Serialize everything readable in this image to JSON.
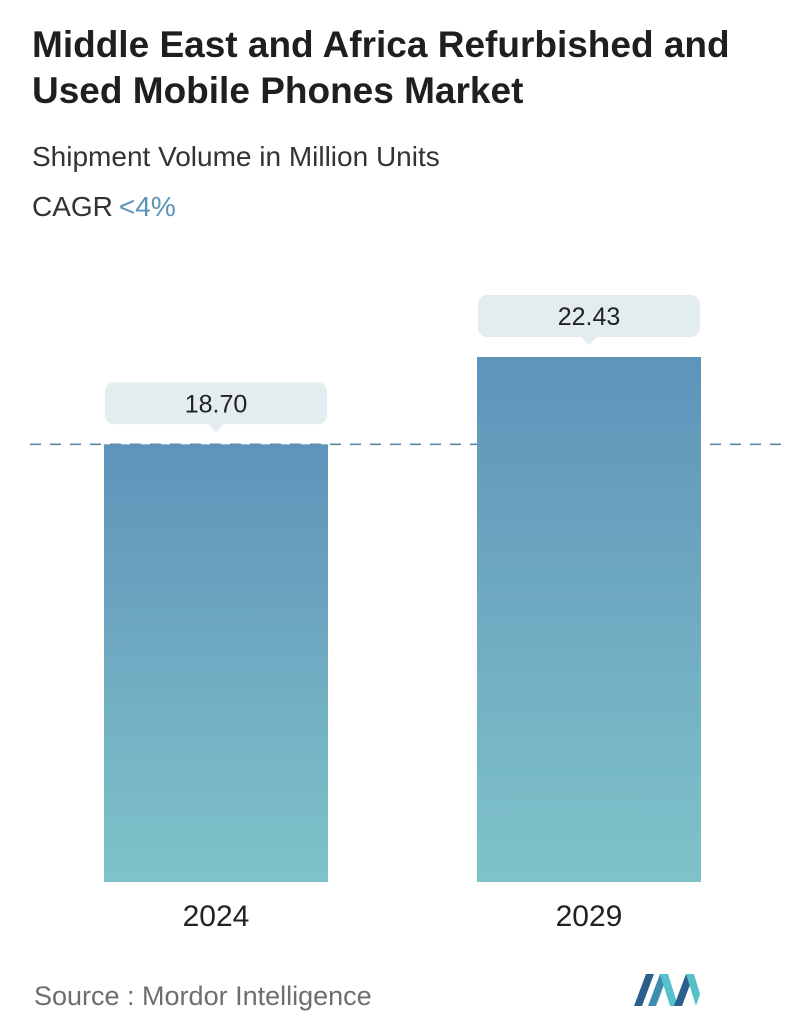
{
  "header": {
    "title": "Middle East and Africa Refurbished and Used Mobile Phones Market",
    "subtitle": "Shipment Volume in Million Units",
    "cagr_label": "CAGR",
    "cagr_value": "<4%"
  },
  "footer": {
    "source": "Source :  Mordor Intelligence",
    "logo_icon": "mordor-intelligence-logo-icon"
  },
  "colors": {
    "bar_top": "#5f93ba",
    "bar_bottom": "#7fc3c9",
    "label_bg": "#e3ecef",
    "dashed_line": "#5a8aa6",
    "cagr_accent": "#5b93b8"
  },
  "chart_data": {
    "type": "bar",
    "categories": [
      "2024",
      "2029"
    ],
    "values": [
      18.7,
      22.43
    ],
    "value_labels": [
      "18.70",
      "22.43"
    ],
    "title": "Middle East and Africa Refurbished and Used Mobile Phones Market",
    "subtitle": "Shipment Volume in Million Units",
    "xlabel": "",
    "ylabel": "",
    "ylim": [
      0,
      22.43
    ],
    "grid": false,
    "reference_line": {
      "value": 18.7,
      "style": "dashed"
    }
  }
}
